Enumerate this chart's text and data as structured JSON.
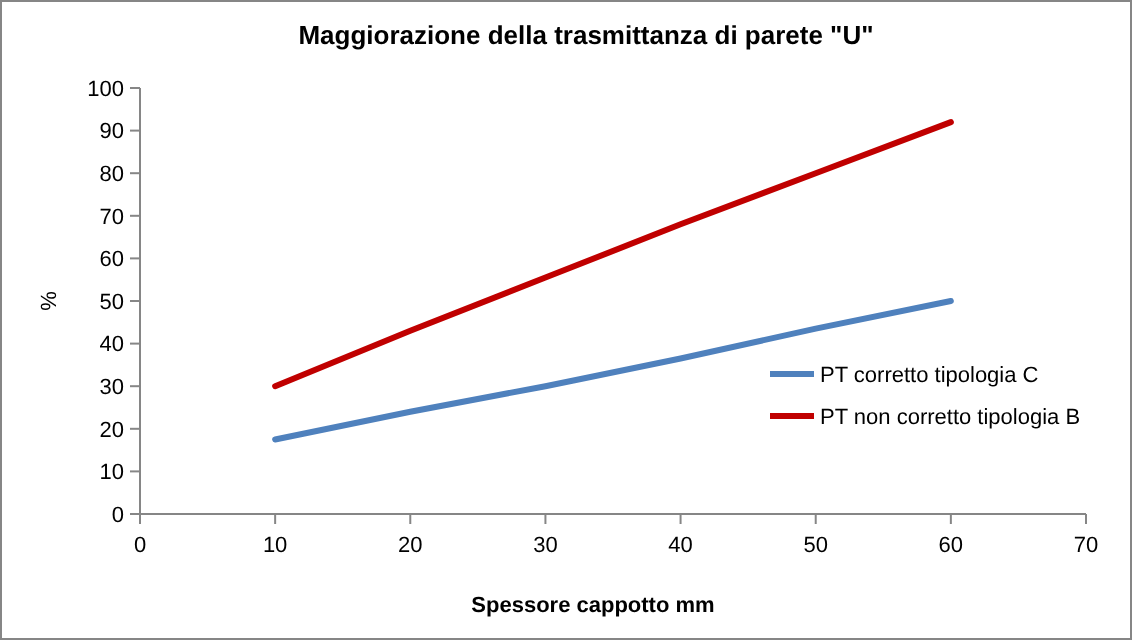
{
  "chart_data": {
    "type": "line",
    "title": "Maggiorazione della trasmittanza di parete \"U\"",
    "xlabel": "Spessore cappotto mm",
    "ylabel": "%",
    "x": [
      10,
      20,
      30,
      40,
      50,
      60
    ],
    "series": [
      {
        "name": "PT corretto tipologia C",
        "color": "#4f81bd",
        "values": [
          17.5,
          24,
          30,
          36.5,
          43.5,
          50
        ]
      },
      {
        "name": "PT non corretto tipologia B",
        "color": "#c00000",
        "values": [
          30,
          43,
          55.5,
          68,
          80,
          92
        ]
      }
    ],
    "xlim": [
      0,
      70
    ],
    "xticks": [
      0,
      10,
      20,
      30,
      40,
      50,
      60,
      70
    ],
    "ylim": [
      0,
      100
    ],
    "yticks": [
      0,
      10,
      20,
      30,
      40,
      50,
      60,
      70,
      80,
      90,
      100
    ],
    "grid": false,
    "legend": "right",
    "marker": "none",
    "line_style": "solid"
  }
}
